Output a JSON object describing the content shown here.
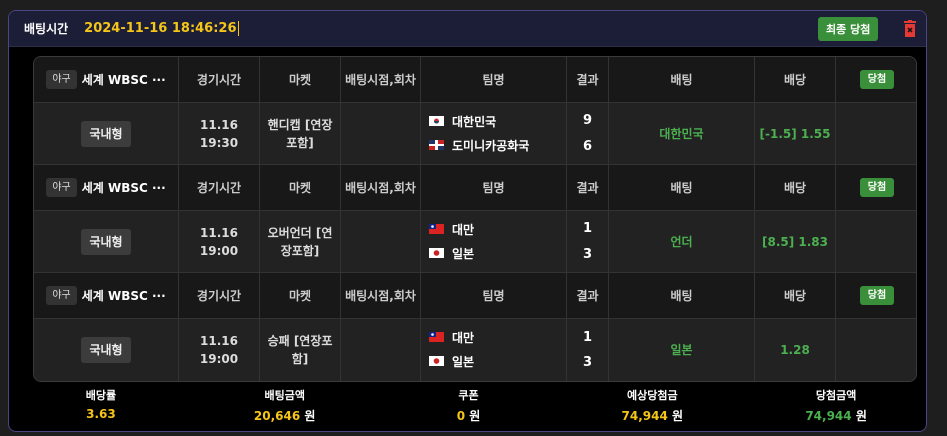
{
  "header": {
    "label": "배팅시간",
    "time": "2024-11-16 18:46:26",
    "final_button": "최종 당첨",
    "delete_icon": "trash-icon",
    "accent": "#f5c518"
  },
  "columns": {
    "time": "경기시간",
    "market": "마켓",
    "point": "배팅시점,회차",
    "team": "팀명",
    "result": "결과",
    "bet": "배팅",
    "odds": "배당"
  },
  "bets": [
    {
      "sport": "야구",
      "league": "세계 WBSC ···",
      "status": "당첨",
      "type": "국내형",
      "time": "11.16 19:30",
      "market": "핸디캡 [연장포함]",
      "point": "",
      "home": {
        "name": "대한민국",
        "flag": "kr"
      },
      "away": {
        "name": "도미니카공화국",
        "flag": "do"
      },
      "home_score": "9",
      "away_score": "6",
      "pick": "대한민국",
      "odds": "[-1.5] 1.55"
    },
    {
      "sport": "야구",
      "league": "세계 WBSC ···",
      "status": "당첨",
      "type": "국내형",
      "time": "11.16 19:00",
      "market": "오버언더 [연장포함]",
      "point": "",
      "home": {
        "name": "대만",
        "flag": "tw"
      },
      "away": {
        "name": "일본",
        "flag": "jp"
      },
      "home_score": "1",
      "away_score": "3",
      "pick": "언더",
      "odds": "[8.5] 1.83"
    },
    {
      "sport": "야구",
      "league": "세계 WBSC ···",
      "status": "당첨",
      "type": "국내형",
      "time": "11.16 19:00",
      "market": "승패 [연장포함]",
      "point": "",
      "home": {
        "name": "대만",
        "flag": "tw"
      },
      "away": {
        "name": "일본",
        "flag": "jp"
      },
      "home_score": "1",
      "away_score": "3",
      "pick": "일본",
      "odds": "1.28"
    }
  ],
  "footer": {
    "odds_label": "배당률",
    "odds": "3.63",
    "amount_label": "배팅금액",
    "amount": "20,646",
    "amount_unit": "원",
    "coupon_label": "쿠폰",
    "coupon": "0",
    "coupon_unit": "원",
    "expected_label": "예상당첨금",
    "expected": "74,944",
    "expected_unit": "원",
    "win_label": "당첨금액",
    "win": "74,944",
    "win_unit": "원"
  }
}
